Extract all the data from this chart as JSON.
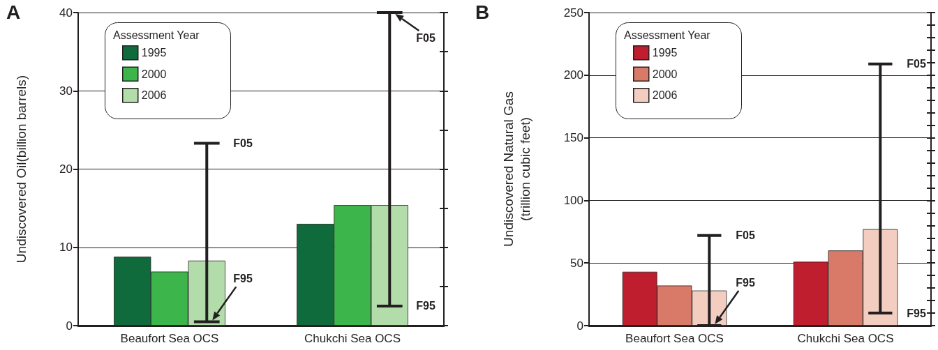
{
  "chart_data": [
    {
      "type": "bar",
      "title": "A",
      "ylabel": "Undiscovered Oil(billion barrels)",
      "legend_title": "Assessment Year",
      "legend": "top left",
      "grid": "y",
      "categories": [
        "Beaufort Sea OCS",
        "Chukchi Sea OCS"
      ],
      "series": [
        {
          "name": "1995",
          "color": "#0f6b3b",
          "values": [
            8.8,
            13.0
          ]
        },
        {
          "name": "2000",
          "color": "#3cb54a",
          "values": [
            6.9,
            15.4
          ]
        },
        {
          "name": "2006",
          "color": "#b3dcab",
          "values": [
            8.3,
            15.4
          ],
          "errors": [
            [
              0.5,
              23.3
            ],
            [
              2.5,
              40
            ]
          ]
        }
      ],
      "ylim": [
        0,
        40
      ],
      "yticks": [
        0,
        {
          "value": 5,
          "label": null
        },
        10,
        {
          "value": 15,
          "label": null
        },
        20,
        {
          "value": 25,
          "label": null
        },
        30,
        {
          "value": 35,
          "label": null
        },
        40
      ],
      "annotations": [
        "F05",
        "F95",
        "F05",
        "F95"
      ]
    },
    {
      "type": "bar",
      "title": "B",
      "ylabel": "Undiscovered Natural Gas\n(trillion cubic feet)",
      "legend_title": "Assessment Year",
      "legend": "top left",
      "grid": "y",
      "categories": [
        "Beaufort Sea OCS",
        "Chukchi Sea OCS"
      ],
      "series": [
        {
          "name": "1995",
          "color": "#be1e2d",
          "values": [
            43,
            51
          ]
        },
        {
          "name": "2000",
          "color": "#d87a67",
          "values": [
            32,
            60
          ]
        },
        {
          "name": "2006",
          "color": "#f2cdc0",
          "values": [
            28,
            77
          ],
          "errors": [
            [
              0,
              72
            ],
            [
              10,
              209
            ]
          ]
        }
      ],
      "ylim": [
        0,
        250
      ],
      "yticks": [
        0,
        {
          "value": 10,
          "label": null
        },
        {
          "value": 20,
          "label": null
        },
        {
          "value": 30,
          "label": null
        },
        {
          "value": 40,
          "label": null
        },
        50,
        {
          "value": 60,
          "label": null
        },
        {
          "value": 70,
          "label": null
        },
        {
          "value": 80,
          "label": null
        },
        {
          "value": 90,
          "label": null
        },
        100,
        {
          "value": 110,
          "label": null
        },
        {
          "value": 120,
          "label": null
        },
        {
          "value": 130,
          "label": null
        },
        {
          "value": 140,
          "label": null
        },
        150,
        {
          "value": 160,
          "label": null
        },
        {
          "value": 170,
          "label": null
        },
        {
          "value": 180,
          "label": null
        },
        {
          "value": 190,
          "label": null
        },
        200,
        {
          "value": 210,
          "label": null
        },
        {
          "value": 220,
          "label": null
        },
        {
          "value": 230,
          "label": null
        },
        {
          "value": 240,
          "label": null
        },
        250
      ],
      "annotations": [
        "F05",
        "F95",
        "F05",
        "F95"
      ]
    }
  ]
}
